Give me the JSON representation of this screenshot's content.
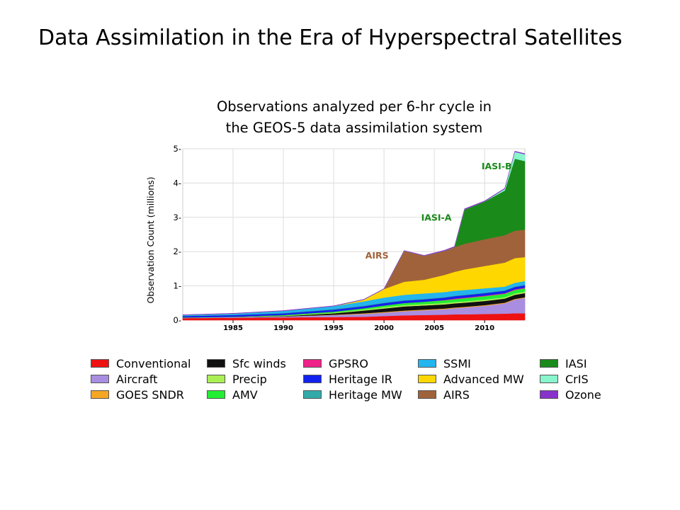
{
  "slide": {
    "title": "Data Assimilation in the Era of Hyperspectral Satellites"
  },
  "chart_data": {
    "type": "area",
    "stacked": true,
    "title_lines": [
      "Observations analyzed per 6-hr cycle in",
      "the GEOS-5 data assimilation system"
    ],
    "ylabel": "Observation Count (millions)",
    "xlabel": "",
    "xlim": [
      1980,
      2014
    ],
    "ylim": [
      0,
      5
    ],
    "xticks": [
      1985,
      1990,
      1995,
      2000,
      2005,
      2010
    ],
    "yticks": [
      0,
      1,
      2,
      3,
      4,
      5
    ],
    "ytick_labels": [
      "0-",
      "1-",
      "2-",
      "3-",
      "4-",
      "5-"
    ],
    "grid": true,
    "legend_position": "bottom",
    "x": [
      1980,
      1985,
      1990,
      1995,
      1998,
      2000,
      2002,
      2004,
      2006,
      2007,
      2008,
      2010,
      2012,
      2013,
      2014
    ],
    "series": [
      {
        "name": "Conventional",
        "color": "#ee1111",
        "values": [
          0.06,
          0.07,
          0.08,
          0.09,
          0.1,
          0.12,
          0.14,
          0.15,
          0.16,
          0.17,
          0.17,
          0.18,
          0.19,
          0.2,
          0.2
        ]
      },
      {
        "name": "Aircraft",
        "color": "#a98de0",
        "values": [
          0.01,
          0.02,
          0.03,
          0.06,
          0.08,
          0.1,
          0.12,
          0.14,
          0.16,
          0.18,
          0.2,
          0.24,
          0.3,
          0.4,
          0.45
        ]
      },
      {
        "name": "GOES SNDR",
        "color": "#f5a623",
        "values": [
          0,
          0,
          0,
          0.01,
          0.02,
          0.02,
          0.02,
          0.02,
          0.02,
          0.02,
          0.02,
          0.02,
          0.02,
          0.02,
          0.02
        ]
      },
      {
        "name": "Sfc winds",
        "color": "#111111",
        "values": [
          0,
          0,
          0.01,
          0.04,
          0.08,
          0.1,
          0.12,
          0.12,
          0.12,
          0.12,
          0.12,
          0.12,
          0.12,
          0.12,
          0.12
        ]
      },
      {
        "name": "Precip",
        "color": "#aaf055",
        "values": [
          0,
          0,
          0.01,
          0.02,
          0.03,
          0.04,
          0.04,
          0.04,
          0.04,
          0.04,
          0.04,
          0.04,
          0.04,
          0.04,
          0.04
        ]
      },
      {
        "name": "AMV",
        "color": "#22ee33",
        "values": [
          0.01,
          0.01,
          0.02,
          0.03,
          0.04,
          0.05,
          0.06,
          0.07,
          0.08,
          0.08,
          0.09,
          0.1,
          0.1,
          0.1,
          0.1
        ]
      },
      {
        "name": "GPSRO",
        "color": "#ee2288",
        "values": [
          0,
          0,
          0,
          0,
          0,
          0,
          0,
          0,
          0.01,
          0.02,
          0.02,
          0.02,
          0.02,
          0.02,
          0.02
        ]
      },
      {
        "name": "Heritage IR",
        "color": "#1122ee",
        "values": [
          0.04,
          0.05,
          0.05,
          0.06,
          0.06,
          0.07,
          0.07,
          0.07,
          0.07,
          0.07,
          0.07,
          0.07,
          0.07,
          0.07,
          0.07
        ]
      },
      {
        "name": "Heritage MW",
        "color": "#33aaaa",
        "values": [
          0.01,
          0.01,
          0.01,
          0.02,
          0.02,
          0.02,
          0.02,
          0.02,
          0.02,
          0.02,
          0.02,
          0.02,
          0.02,
          0.02,
          0.02
        ]
      },
      {
        "name": "SSMI",
        "color": "#22b5ee",
        "values": [
          0.02,
          0.03,
          0.06,
          0.08,
          0.12,
          0.14,
          0.15,
          0.15,
          0.14,
          0.14,
          0.13,
          0.12,
          0.1,
          0.1,
          0.1
        ]
      },
      {
        "name": "Advanced MW",
        "color": "#ffd700",
        "values": [
          0,
          0,
          0,
          0,
          0.05,
          0.25,
          0.38,
          0.4,
          0.5,
          0.55,
          0.6,
          0.65,
          0.7,
          0.72,
          0.7
        ]
      },
      {
        "name": "AIRS",
        "color": "#a0623a",
        "values": [
          0,
          0,
          0,
          0,
          0,
          0,
          0.9,
          0.7,
          0.7,
          0.72,
          0.75,
          0.78,
          0.8,
          0.8,
          0.8
        ]
      },
      {
        "name": "IASI",
        "color": "#1a8a1a",
        "values": [
          0,
          0,
          0,
          0,
          0,
          0,
          0,
          0,
          0,
          0,
          1.0,
          1.1,
          1.3,
          2.1,
          2.0
        ]
      },
      {
        "name": "CrIS",
        "color": "#88f5cc",
        "values": [
          0,
          0,
          0,
          0,
          0,
          0,
          0,
          0,
          0,
          0,
          0,
          0,
          0.05,
          0.2,
          0.2
        ]
      },
      {
        "name": "Ozone",
        "color": "#8833cc",
        "values": [
          0.01,
          0.01,
          0.01,
          0.01,
          0.01,
          0.01,
          0.01,
          0.01,
          0.02,
          0.02,
          0.02,
          0.02,
          0.02,
          0.02,
          0.02
        ]
      }
    ],
    "annotations": [
      {
        "text": "AIRS",
        "x": 1999.3,
        "y": 1.8,
        "color": "#a0623a"
      },
      {
        "text": "IASI-A",
        "x": 2005.2,
        "y": 2.9,
        "color": "#1a8a1a"
      },
      {
        "text": "IASI-B",
        "x": 2011.2,
        "y": 4.4,
        "color": "#1a8a1a"
      }
    ],
    "legend_rows": [
      [
        "Conventional",
        "Sfc winds",
        "GPSRO",
        "SSMI",
        "IASI"
      ],
      [
        "Aircraft",
        "Precip",
        "Heritage IR",
        "Advanced MW",
        "CrIS"
      ],
      [
        "GOES SNDR",
        "AMV",
        "Heritage MW",
        "AIRS",
        "Ozone"
      ]
    ]
  }
}
